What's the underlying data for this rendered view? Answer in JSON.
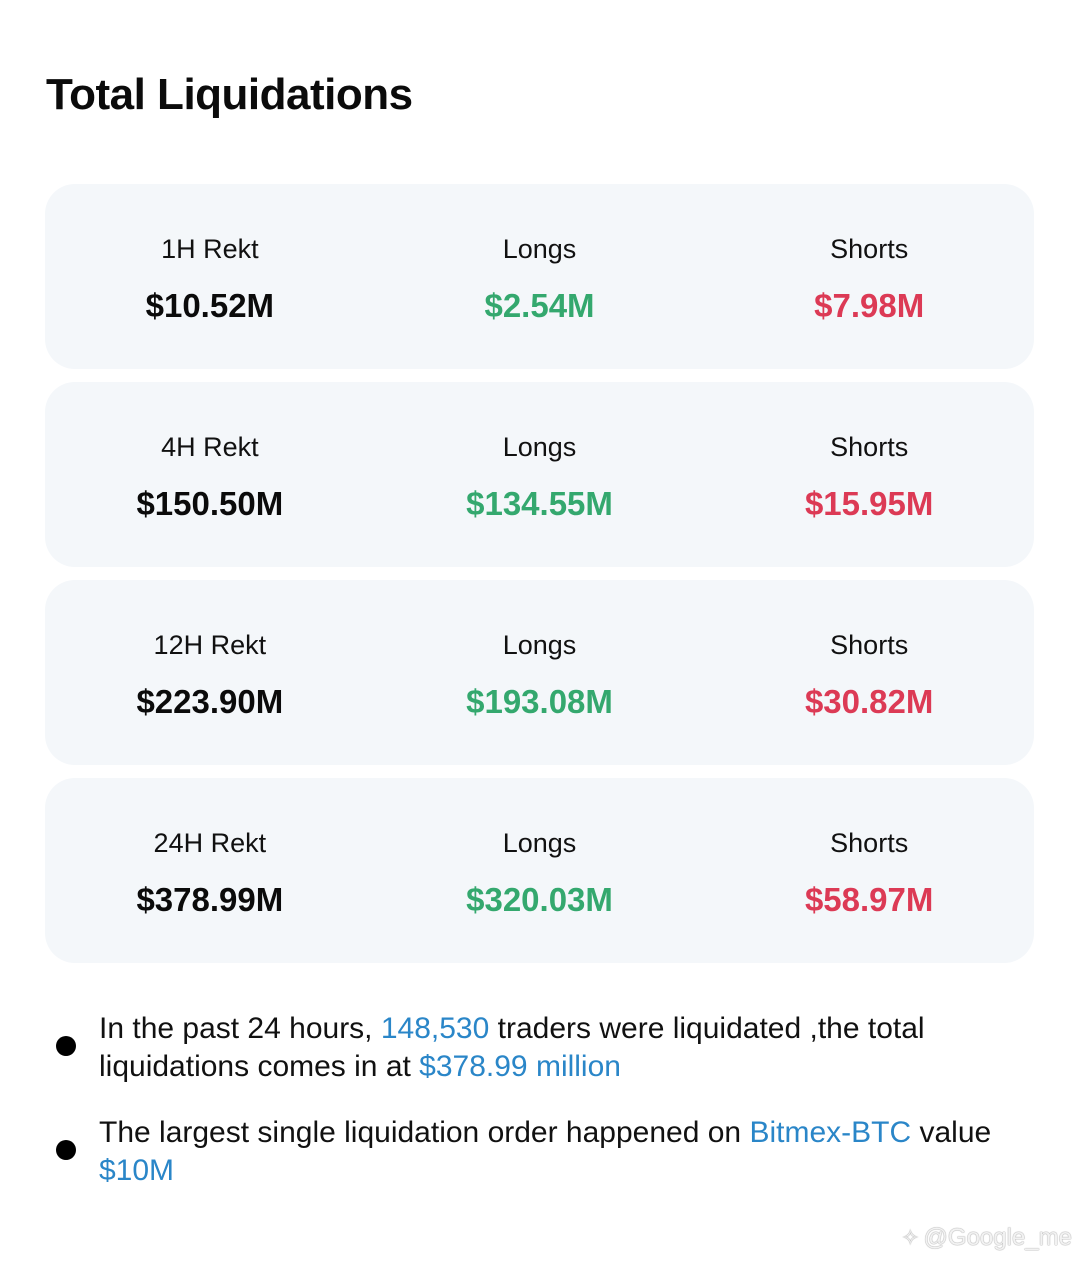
{
  "title": "Total Liquidations",
  "colors": {
    "long": "#34a86e",
    "short": "#dc3a55",
    "highlight": "#2a86c8",
    "card_bg": "#f4f7fa"
  },
  "cards": [
    {
      "period_label": "1H Rekt",
      "total": "$10.52M",
      "longs_label": "Longs",
      "longs": "$2.54M",
      "shorts_label": "Shorts",
      "shorts": "$7.98M"
    },
    {
      "period_label": "4H Rekt",
      "total": "$150.50M",
      "longs_label": "Longs",
      "longs": "$134.55M",
      "shorts_label": "Shorts",
      "shorts": "$15.95M"
    },
    {
      "period_label": "12H Rekt",
      "total": "$223.90M",
      "longs_label": "Longs",
      "longs": "$193.08M",
      "shorts_label": "Shorts",
      "shorts": "$30.82M"
    },
    {
      "period_label": "24H Rekt",
      "total": "$378.99M",
      "longs_label": "Longs",
      "longs": "$320.03M",
      "shorts_label": "Shorts",
      "shorts": "$58.97M"
    }
  ],
  "notes": [
    {
      "t1": "In the past 24 hours, ",
      "h1": "148,530",
      "t2": " traders were liquidated ,the total liquidations comes in at ",
      "h2": "$378.99 million"
    },
    {
      "t1": "The largest single liquidation order happened on ",
      "h1": "Bitmex-BTC",
      "t2": " value ",
      "h2": "$10M"
    }
  ],
  "watermark": {
    "icon": "diamond-logo-icon",
    "text": "@Google_me"
  }
}
